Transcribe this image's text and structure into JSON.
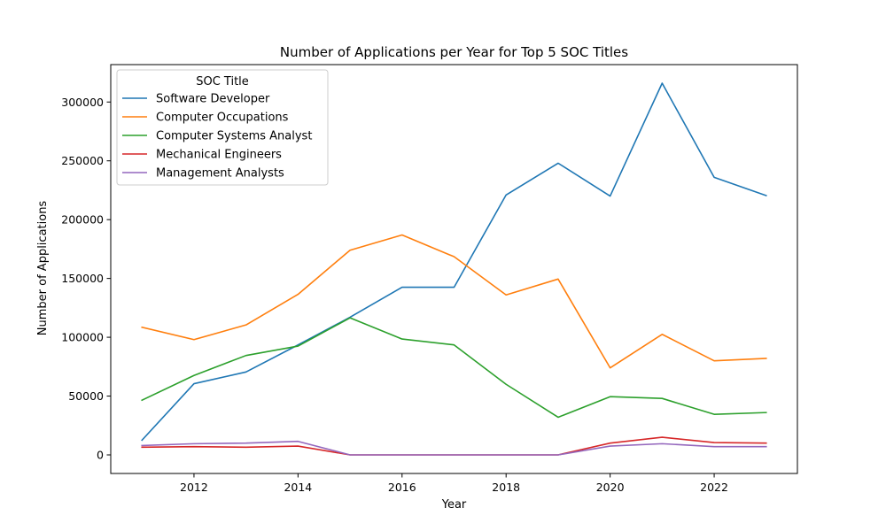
{
  "chart_data": {
    "type": "line",
    "title": "Number of Applications per Year for Top 5 SOC Titles",
    "xlabel": "Year",
    "ylabel": "Number of Applications",
    "x": [
      2011,
      2012,
      2013,
      2014,
      2015,
      2016,
      2017,
      2018,
      2019,
      2020,
      2021,
      2022,
      2023
    ],
    "xlim": [
      2010.4,
      2023.6
    ],
    "ylim": [
      -15800,
      331800
    ],
    "xticks": [
      2012,
      2014,
      2016,
      2018,
      2020,
      2022
    ],
    "yticks": [
      0,
      50000,
      100000,
      150000,
      200000,
      250000,
      300000
    ],
    "grid": false,
    "legend_title": "SOC Title",
    "legend_position": "upper-left",
    "series": [
      {
        "name": "Software Developer",
        "color": "#1f77b4",
        "values": [
          12500,
          60500,
          70500,
          93500,
          117000,
          142500,
          142500,
          221000,
          248000,
          220000,
          316000,
          236000,
          220500
        ]
      },
      {
        "name": "Computer Occupations",
        "color": "#ff7f0e",
        "values": [
          108500,
          98000,
          110500,
          136500,
          174000,
          187000,
          168500,
          136000,
          149500,
          74000,
          102500,
          80000,
          82000
        ]
      },
      {
        "name": "Computer Systems Analyst",
        "color": "#2ca02c",
        "values": [
          46500,
          67500,
          84500,
          92500,
          116500,
          98500,
          93500,
          60000,
          32000,
          49500,
          48000,
          34500,
          36000
        ]
      },
      {
        "name": "Mechanical Engineers",
        "color": "#d62728",
        "values": [
          6500,
          7000,
          6500,
          7500,
          0,
          0,
          0,
          0,
          0,
          10000,
          15000,
          10500,
          10000
        ]
      },
      {
        "name": "Management Analysts",
        "color": "#9467bd",
        "values": [
          8000,
          9500,
          10000,
          11500,
          0,
          0,
          0,
          0,
          0,
          7500,
          9500,
          7000,
          7000
        ]
      }
    ]
  }
}
